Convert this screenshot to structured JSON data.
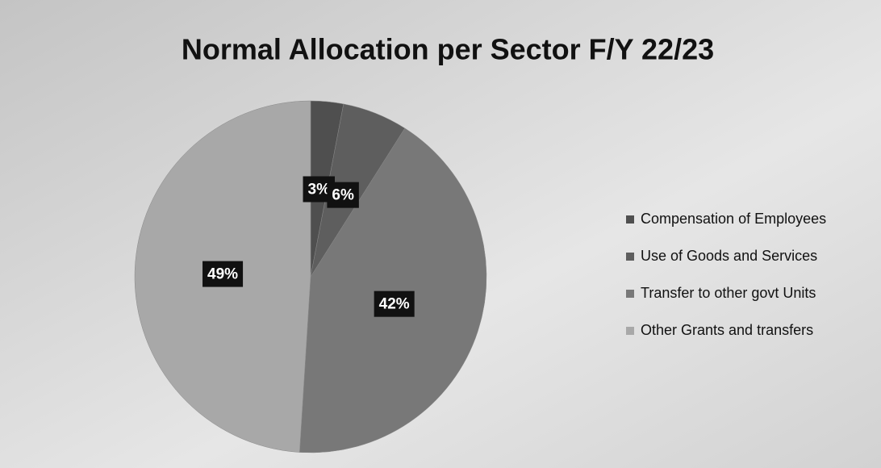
{
  "chart_data": {
    "type": "pie",
    "title": "Normal Allocation per Sector F/Y 22/23",
    "categories": [
      "Compensation of Employees",
      "Use of Goods and Services",
      "Transfer to other govt Units",
      "Other Grants and transfers"
    ],
    "values": [
      3,
      6,
      42,
      49
    ],
    "value_labels": [
      "3%",
      "6%",
      "42%",
      "49%"
    ],
    "colors": [
      "#4f4f4f",
      "#5e5e5e",
      "#787878",
      "#a8a8a8"
    ],
    "legend": "right"
  }
}
